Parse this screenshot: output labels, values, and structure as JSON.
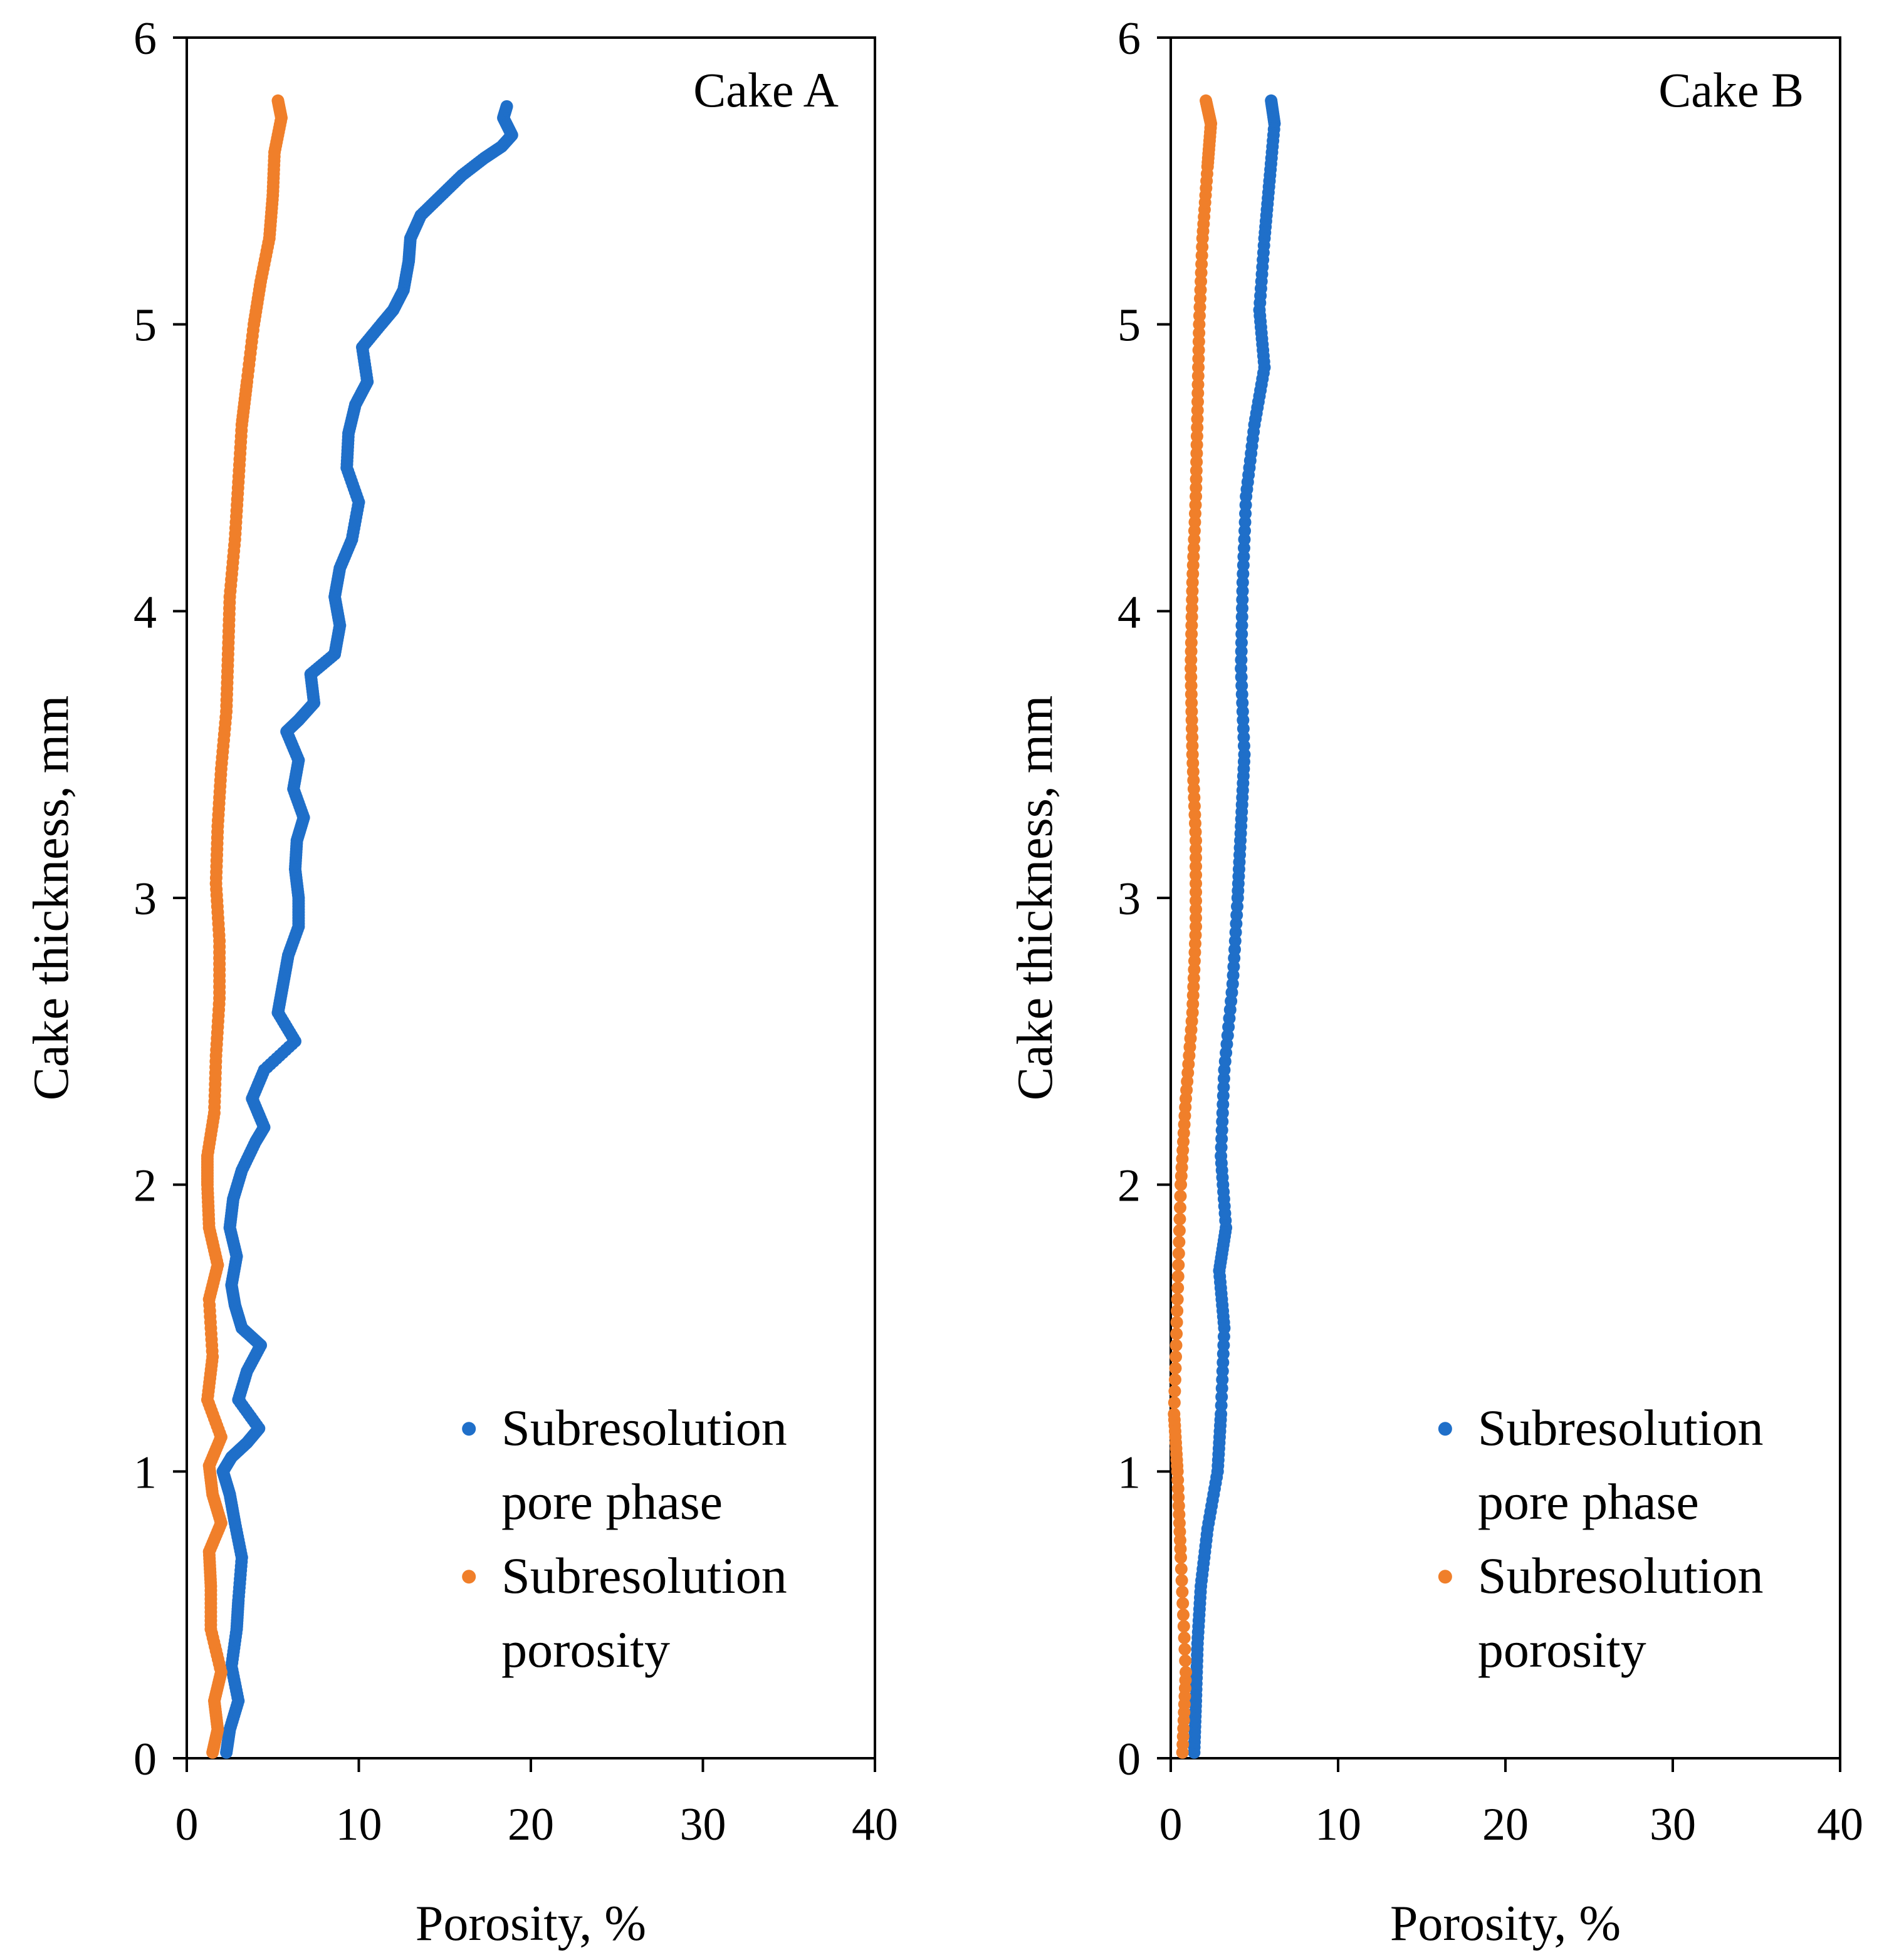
{
  "chart_data": [
    {
      "type": "scatter",
      "title": "Cake A",
      "xlabel": "Porosity, %",
      "ylabel": "Cake thickness, mm",
      "xlim": [
        0,
        40
      ],
      "ylim": [
        0,
        6
      ],
      "xticks": [
        "0",
        "10",
        "20",
        "30",
        "40"
      ],
      "yticks": [
        "0",
        "1",
        "2",
        "3",
        "4",
        "5",
        "6"
      ],
      "legend_position": "bottom-right",
      "series": [
        {
          "name": "Subresolution pore phase",
          "legend_lines": [
            "Subresolution",
            "pore phase"
          ],
          "color": "#1f6fc9",
          "points": [
            [
              2.3,
              0.02
            ],
            [
              2.5,
              0.1
            ],
            [
              3.0,
              0.2
            ],
            [
              2.6,
              0.32
            ],
            [
              2.9,
              0.45
            ],
            [
              3.0,
              0.55
            ],
            [
              3.2,
              0.7
            ],
            [
              2.8,
              0.82
            ],
            [
              2.5,
              0.92
            ],
            [
              2.1,
              1.0
            ],
            [
              2.6,
              1.05
            ],
            [
              3.5,
              1.1
            ],
            [
              4.2,
              1.15
            ],
            [
              3.0,
              1.25
            ],
            [
              3.5,
              1.35
            ],
            [
              4.3,
              1.44
            ],
            [
              3.2,
              1.5
            ],
            [
              2.8,
              1.58
            ],
            [
              2.6,
              1.65
            ],
            [
              2.9,
              1.75
            ],
            [
              2.5,
              1.85
            ],
            [
              2.7,
              1.95
            ],
            [
              3.2,
              2.05
            ],
            [
              4.0,
              2.15
            ],
            [
              4.5,
              2.2
            ],
            [
              3.8,
              2.3
            ],
            [
              4.5,
              2.4
            ],
            [
              6.3,
              2.5
            ],
            [
              5.3,
              2.6
            ],
            [
              5.6,
              2.7
            ],
            [
              5.9,
              2.8
            ],
            [
              6.5,
              2.9
            ],
            [
              6.5,
              3.0
            ],
            [
              6.3,
              3.1
            ],
            [
              6.4,
              3.2
            ],
            [
              6.8,
              3.28
            ],
            [
              6.2,
              3.38
            ],
            [
              6.5,
              3.48
            ],
            [
              5.8,
              3.58
            ],
            [
              6.5,
              3.62
            ],
            [
              7.4,
              3.68
            ],
            [
              7.2,
              3.78
            ],
            [
              8.6,
              3.85
            ],
            [
              8.9,
              3.95
            ],
            [
              8.6,
              4.05
            ],
            [
              8.9,
              4.15
            ],
            [
              9.6,
              4.25
            ],
            [
              10.0,
              4.38
            ],
            [
              9.3,
              4.5
            ],
            [
              9.4,
              4.62
            ],
            [
              9.8,
              4.72
            ],
            [
              10.5,
              4.8
            ],
            [
              10.2,
              4.92
            ],
            [
              11.3,
              5.0
            ],
            [
              12.0,
              5.05
            ],
            [
              12.6,
              5.12
            ],
            [
              12.9,
              5.22
            ],
            [
              13.0,
              5.3
            ],
            [
              13.6,
              5.38
            ],
            [
              14.8,
              5.45
            ],
            [
              16.0,
              5.52
            ],
            [
              17.3,
              5.58
            ],
            [
              18.3,
              5.62
            ],
            [
              18.9,
              5.66
            ],
            [
              18.4,
              5.72
            ],
            [
              18.6,
              5.76
            ]
          ]
        },
        {
          "name": "Subresolution porosity",
          "legend_lines": [
            "Subresolution",
            "porosity"
          ],
          "color": "#f07f2a",
          "points": [
            [
              1.5,
              0.02
            ],
            [
              1.8,
              0.1
            ],
            [
              1.6,
              0.2
            ],
            [
              2.0,
              0.3
            ],
            [
              1.4,
              0.45
            ],
            [
              1.4,
              0.6
            ],
            [
              1.3,
              0.72
            ],
            [
              2.0,
              0.82
            ],
            [
              1.5,
              0.92
            ],
            [
              1.3,
              1.02
            ],
            [
              2.0,
              1.12
            ],
            [
              1.2,
              1.25
            ],
            [
              1.5,
              1.4
            ],
            [
              1.3,
              1.6
            ],
            [
              1.8,
              1.72
            ],
            [
              1.3,
              1.85
            ],
            [
              1.2,
              2.0
            ],
            [
              1.2,
              2.1
            ],
            [
              1.6,
              2.25
            ],
            [
              1.7,
              2.45
            ],
            [
              1.9,
              2.65
            ],
            [
              1.9,
              2.85
            ],
            [
              1.7,
              3.05
            ],
            [
              1.8,
              3.25
            ],
            [
              2.0,
              3.45
            ],
            [
              2.3,
              3.65
            ],
            [
              2.4,
              3.85
            ],
            [
              2.5,
              4.05
            ],
            [
              2.8,
              4.25
            ],
            [
              3.0,
              4.45
            ],
            [
              3.2,
              4.65
            ],
            [
              3.5,
              4.8
            ],
            [
              3.9,
              5.0
            ],
            [
              4.3,
              5.15
            ],
            [
              4.8,
              5.3
            ],
            [
              5.0,
              5.45
            ],
            [
              5.1,
              5.6
            ],
            [
              5.5,
              5.72
            ],
            [
              5.3,
              5.78
            ]
          ]
        }
      ]
    },
    {
      "type": "scatter",
      "title": "Cake B",
      "xlabel": "Porosity, %",
      "ylabel": "Cake thickness, mm",
      "xlim": [
        0,
        40
      ],
      "ylim": [
        0,
        6
      ],
      "xticks": [
        "0",
        "10",
        "20",
        "30",
        "40"
      ],
      "yticks": [
        "0",
        "1",
        "2",
        "3",
        "4",
        "5",
        "6"
      ],
      "legend_position": "bottom-right",
      "series": [
        {
          "name": "Subresolution pore phase",
          "legend_lines": [
            "Subresolution",
            "pore phase"
          ],
          "color": "#1f6fc9",
          "points": [
            [
              1.4,
              0.02
            ],
            [
              1.5,
              0.2
            ],
            [
              1.6,
              0.4
            ],
            [
              1.8,
              0.6
            ],
            [
              2.2,
              0.8
            ],
            [
              2.8,
              1.0
            ],
            [
              3.0,
              1.2
            ],
            [
              3.2,
              1.5
            ],
            [
              2.9,
              1.7
            ],
            [
              3.3,
              1.85
            ],
            [
              3.0,
              2.1
            ],
            [
              3.2,
              2.4
            ],
            [
              3.7,
              2.7
            ],
            [
              4.0,
              3.0
            ],
            [
              4.2,
              3.25
            ],
            [
              4.4,
              3.5
            ],
            [
              4.2,
              3.8
            ],
            [
              4.3,
              4.1
            ],
            [
              4.5,
              4.4
            ],
            [
              5.0,
              4.65
            ],
            [
              5.6,
              4.85
            ],
            [
              5.3,
              5.05
            ],
            [
              5.6,
              5.3
            ],
            [
              5.9,
              5.5
            ],
            [
              6.2,
              5.7
            ],
            [
              6.0,
              5.78
            ]
          ]
        },
        {
          "name": "Subresolution porosity",
          "legend_lines": [
            "Subresolution",
            "porosity"
          ],
          "color": "#f07f2a",
          "points": [
            [
              0.7,
              0.02
            ],
            [
              0.9,
              0.3
            ],
            [
              0.6,
              0.7
            ],
            [
              0.4,
              1.0
            ],
            [
              0.2,
              1.2
            ],
            [
              0.4,
              1.6
            ],
            [
              0.6,
              2.0
            ],
            [
              0.9,
              2.3
            ],
            [
              1.3,
              2.6
            ],
            [
              1.5,
              2.9
            ],
            [
              1.5,
              3.2
            ],
            [
              1.3,
              3.5
            ],
            [
              1.2,
              3.8
            ],
            [
              1.3,
              4.1
            ],
            [
              1.5,
              4.4
            ],
            [
              1.6,
              4.7
            ],
            [
              1.7,
              5.0
            ],
            [
              1.9,
              5.3
            ],
            [
              2.2,
              5.55
            ],
            [
              2.4,
              5.7
            ],
            [
              2.1,
              5.78
            ]
          ]
        }
      ]
    }
  ]
}
